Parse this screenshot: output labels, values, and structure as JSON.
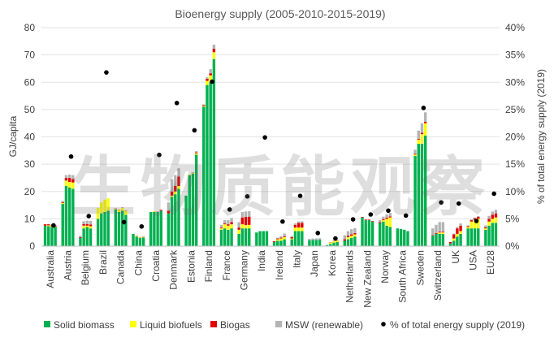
{
  "chart_data": {
    "type": "bar",
    "stacked": true,
    "title": "Bioenergy supply (2005-2010-2015-2019)",
    "ylabel": "GJ/capita",
    "y2label": "% of total energy supply (2019)",
    "ylim": [
      0,
      80
    ],
    "y_ticks": [
      "0",
      "10",
      "20",
      "30",
      "40",
      "50",
      "60",
      "70",
      "80"
    ],
    "y2lim": [
      0,
      40
    ],
    "y2_ticks": [
      "0%",
      "5%",
      "10%",
      "15%",
      "20%",
      "25%",
      "30%",
      "35%",
      "40%"
    ],
    "grid": true,
    "legend_position": "bottom",
    "years": [
      "2005",
      "2010",
      "2015",
      "2019"
    ],
    "categories": [
      "Australia",
      "Austria",
      "Belgium",
      "Brazil",
      "Canada",
      "China",
      "Croatia",
      "Denmark",
      "Estonia",
      "Finland",
      "France",
      "Germany",
      "India",
      "Ireland",
      "Italy",
      "Japan",
      "Korea",
      "Netherlands",
      "New Zealand",
      "Norway",
      "South Africa",
      "Sweden",
      "Switzerland",
      "UK",
      "USA",
      "EU28"
    ],
    "series": [
      {
        "name": "Solid biomass",
        "color": "#00b050",
        "values": [
          [
            7.5,
            7.3,
            7.0,
            7.0
          ],
          [
            15.5,
            22.0,
            21.5,
            21.0
          ],
          [
            3.0,
            6.5,
            7.0,
            6.5
          ],
          [
            10.0,
            12.0,
            12.5,
            13.0
          ],
          [
            13.5,
            12.5,
            13.0,
            11.5
          ],
          [
            4.5,
            3.5,
            3.0,
            3.2
          ],
          [
            12.5,
            12.5,
            12.5,
            13.0
          ],
          [
            12.0,
            18.0,
            19.0,
            21.0
          ],
          [
            18.5,
            26.0,
            26.5,
            33.5
          ],
          [
            51.0,
            59.0,
            60.0,
            68.5
          ],
          [
            6.0,
            6.5,
            6.0,
            6.5
          ],
          [
            4.5,
            6.5,
            6.5,
            6.5
          ],
          [
            5.0,
            5.5,
            5.5,
            5.5
          ],
          [
            1.5,
            2.0,
            2.0,
            2.5
          ],
          [
            2.5,
            5.5,
            5.5,
            5.5
          ],
          [
            2.2,
            2.3,
            2.3,
            2.4
          ],
          [
            0.4,
            0.8,
            1.3,
            1.5
          ],
          [
            2.0,
            2.5,
            3.0,
            3.5
          ],
          [
            10.5,
            9.5,
            9.5,
            9.0
          ],
          [
            8.5,
            9.0,
            7.5,
            7.0
          ],
          [
            6.5,
            6.3,
            6.0,
            5.5
          ],
          [
            33.0,
            37.5,
            37.5,
            40.5
          ],
          [
            3.8,
            4.5,
            4.5,
            4.5
          ],
          [
            1.0,
            2.0,
            3.5,
            4.5
          ],
          [
            6.5,
            6.5,
            6.5,
            6.5
          ],
          [
            6.0,
            7.5,
            8.5,
            8.5
          ]
        ]
      },
      {
        "name": "Liquid biofuels",
        "color": "#ffff00",
        "values": [
          [
            0.0,
            0.3,
            0.3,
            0.2
          ],
          [
            0.3,
            2.0,
            2.0,
            2.3
          ],
          [
            0.0,
            1.0,
            0.5,
            0.8
          ],
          [
            4.0,
            4.0,
            4.5,
            4.5
          ],
          [
            0.2,
            0.8,
            1.0,
            1.5
          ],
          [
            0.0,
            0.2,
            0.2,
            0.2
          ],
          [
            0.0,
            0.3,
            0.0,
            0.0
          ],
          [
            0.0,
            0.5,
            1.0,
            1.0
          ],
          [
            0.0,
            0.2,
            0.2,
            0.5
          ],
          [
            0.3,
            1.5,
            2.5,
            2.5
          ],
          [
            0.5,
            1.5,
            1.5,
            1.5
          ],
          [
            1.5,
            1.5,
            1.2,
            1.3
          ],
          [
            0.0,
            0.0,
            0.0,
            0.0
          ],
          [
            0.0,
            0.5,
            0.8,
            0.8
          ],
          [
            0.3,
            1.3,
            1.3,
            1.3
          ],
          [
            0.0,
            0.0,
            0.0,
            0.0
          ],
          [
            0.0,
            0.5,
            0.5,
            0.5
          ],
          [
            0.0,
            0.8,
            0.8,
            0.8
          ],
          [
            0.0,
            0.0,
            0.0,
            0.0
          ],
          [
            0.0,
            0.5,
            2.5,
            3.5
          ],
          [
            0.0,
            0.0,
            0.0,
            0.0
          ],
          [
            0.5,
            1.5,
            3.5,
            4.5
          ],
          [
            0.0,
            0.0,
            0.5,
            0.5
          ],
          [
            0.0,
            0.8,
            1.0,
            1.0
          ],
          [
            0.5,
            2.5,
            3.0,
            3.5
          ],
          [
            0.5,
            1.5,
            1.5,
            2.0
          ]
        ]
      },
      {
        "name": "Biogas",
        "color": "#e00000",
        "values": [
          [
            0.5,
            0.4,
            0.3,
            0.3
          ],
          [
            0.3,
            1.0,
            1.5,
            1.3
          ],
          [
            0.3,
            0.6,
            0.6,
            0.6
          ],
          [
            0.0,
            0.0,
            0.0,
            0.0
          ],
          [
            0.1,
            0.1,
            0.1,
            0.1
          ],
          [
            0.0,
            0.1,
            0.1,
            0.1
          ],
          [
            0.0,
            0.0,
            0.1,
            0.3
          ],
          [
            1.0,
            1.5,
            2.0,
            3.5
          ],
          [
            0.0,
            0.0,
            0.1,
            0.3
          ],
          [
            0.3,
            0.8,
            0.8,
            1.3
          ],
          [
            0.3,
            0.3,
            0.5,
            0.8
          ],
          [
            0.8,
            2.5,
            3.0,
            3.0
          ],
          [
            0.0,
            0.0,
            0.0,
            0.0
          ],
          [
            0.3,
            0.3,
            0.3,
            0.3
          ],
          [
            0.5,
            1.0,
            1.7,
            1.7
          ],
          [
            0.0,
            0.0,
            0.0,
            0.0
          ],
          [
            0.0,
            0.1,
            0.1,
            0.1
          ],
          [
            0.5,
            0.5,
            0.5,
            0.5
          ],
          [
            0.2,
            0.2,
            0.2,
            0.2
          ],
          [
            0.3,
            0.3,
            0.4,
            0.4
          ],
          [
            0.0,
            0.0,
            0.0,
            0.0
          ],
          [
            0.3,
            0.3,
            0.5,
            0.5
          ],
          [
            0.2,
            0.3,
            0.3,
            0.3
          ],
          [
            0.5,
            1.5,
            2.0,
            2.0
          ],
          [
            0.3,
            0.5,
            0.7,
            0.7
          ],
          [
            0.4,
            1.0,
            1.5,
            1.5
          ]
        ]
      },
      {
        "name": "MSW (renewable)",
        "color": "#b4b4b4",
        "values": [
          [
            0.0,
            0.0,
            0.0,
            0.0
          ],
          [
            0.5,
            1.0,
            1.2,
            1.4
          ],
          [
            0.5,
            1.0,
            1.2,
            1.3
          ],
          [
            0.0,
            0.0,
            0.0,
            0.0
          ],
          [
            0.0,
            0.0,
            0.0,
            0.0
          ],
          [
            0.0,
            0.0,
            0.0,
            0.0
          ],
          [
            0.0,
            0.0,
            0.0,
            0.0
          ],
          [
            3.0,
            4.5,
            4.0,
            3.0
          ],
          [
            0.0,
            0.0,
            0.3,
            0.5
          ],
          [
            0.3,
            0.5,
            1.5,
            1.5
          ],
          [
            1.0,
            1.2,
            1.5,
            1.5
          ],
          [
            2.0,
            2.0,
            2.0,
            2.0
          ],
          [
            0.0,
            0.0,
            0.0,
            0.0
          ],
          [
            0.0,
            0.3,
            0.5,
            1.0
          ],
          [
            0.4,
            0.5,
            0.5,
            0.6
          ],
          [
            0.5,
            0.5,
            0.5,
            0.5
          ],
          [
            0.0,
            0.1,
            0.1,
            0.1
          ],
          [
            1.5,
            1.7,
            1.9,
            1.8
          ],
          [
            0.0,
            0.0,
            0.0,
            0.0
          ],
          [
            0.8,
            1.0,
            1.2,
            1.3
          ],
          [
            0.0,
            0.0,
            0.0,
            0.0
          ],
          [
            1.5,
            3.0,
            3.5,
            3.5
          ],
          [
            2.5,
            3.0,
            3.5,
            3.5
          ],
          [
            0.0,
            0.3,
            0.5,
            0.8
          ],
          [
            0.3,
            0.3,
            0.3,
            0.3
          ],
          [
            0.7,
            1.0,
            1.2,
            1.3
          ]
        ]
      }
    ],
    "share_series": {
      "name": "% of total energy supply (2019)",
      "color": "#000000",
      "values": [
        3.8,
        16.4,
        5.5,
        31.8,
        4.4,
        3.6,
        16.7,
        26.2,
        21.2,
        30.1,
        6.7,
        9.1,
        19.9,
        4.5,
        9.2,
        2.4,
        1.4,
        4.9,
        5.8,
        6.5,
        5.6,
        25.3,
        8.0,
        7.8,
        4.6,
        9.6
      ]
    }
  },
  "watermark": "生物质能观察"
}
